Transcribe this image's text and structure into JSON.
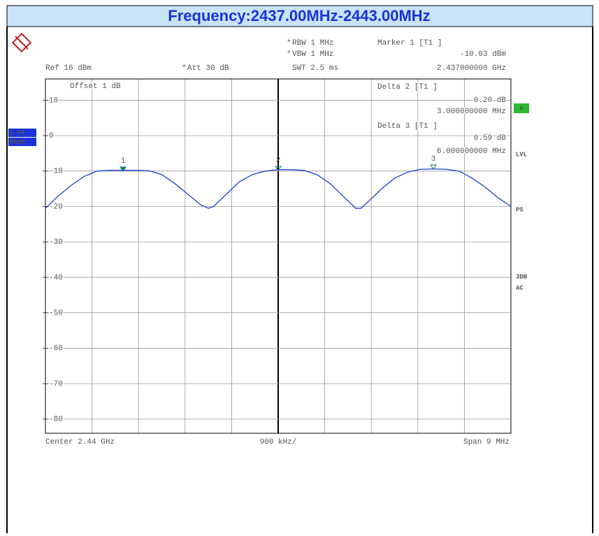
{
  "chart_data": {
    "type": "line",
    "title": "Frequency:2437.00MHz-2443.00MHz",
    "xlim": [
      2435.5,
      2444.5
    ],
    "ylim": [
      -84,
      16
    ],
    "yticks": [
      10,
      0,
      -10,
      -20,
      -30,
      -40,
      -50,
      -60,
      -70,
      -80
    ],
    "grid": true,
    "series": [
      {
        "color": "#1f3fcf",
        "x": [
          2435.5,
          2435.75,
          2436.0,
          2436.25,
          2436.5,
          2436.75,
          2437.0,
          2437.25,
          2437.5,
          2437.75,
          2438.0,
          2438.25,
          2438.5,
          2438.65,
          2438.75,
          2439.0,
          2439.25,
          2439.5,
          2439.75,
          2440.0,
          2440.25,
          2440.5,
          2440.75,
          2441.0,
          2441.25,
          2441.5,
          2441.6,
          2441.75,
          2442.0,
          2442.25,
          2442.5,
          2442.75,
          2443.0,
          2443.25,
          2443.5,
          2443.75,
          2444.0,
          2444.25,
          2444.5
        ],
        "values": [
          -20.5,
          -17,
          -14,
          -11.5,
          -10,
          -9.8,
          -9.8,
          -9.8,
          -9.9,
          -11,
          -13.5,
          -16.5,
          -19.5,
          -20.5,
          -20,
          -16.5,
          -13,
          -11,
          -10,
          -9.6,
          -9.6,
          -9.8,
          -11,
          -13.5,
          -17,
          -20.5,
          -20.5,
          -18.5,
          -15,
          -12,
          -10.3,
          -9.5,
          -9.4,
          -9.5,
          -10,
          -12,
          -14.5,
          -17.5,
          -20
        ]
      }
    ],
    "markers": [
      {
        "label": "1",
        "x": 2437,
        "y": -10.03
      },
      {
        "label": "2",
        "x": 2440,
        "y": -9.83
      },
      {
        "label": "3",
        "x": 2443,
        "y": -9.44
      }
    ],
    "annotations": [
      "*",
      "RBW 1 MHz",
      "Marker 1 [T1 ]",
      "*",
      "VBW 1 MHz",
      "-10.03 dBm",
      "Ref 16 dBm",
      "*",
      "Att 30 dB",
      "SWT 2.5 ms",
      "2.437000000 GHz",
      "Offset 1 dB",
      "Delta 2 [T1 ]",
      "0.20 dB",
      "3.000000000 MHz",
      "Delta 3 [T1 ]",
      "0.59 dB",
      "6.000000000 MHz",
      "Center 2.44 GHz",
      "900 kHz/",
      "Span 9 MHz"
    ],
    "side_labels": [
      "1 PK",
      "MAXH",
      "A",
      "LVL",
      "PS",
      "3DB",
      "AC"
    ]
  }
}
